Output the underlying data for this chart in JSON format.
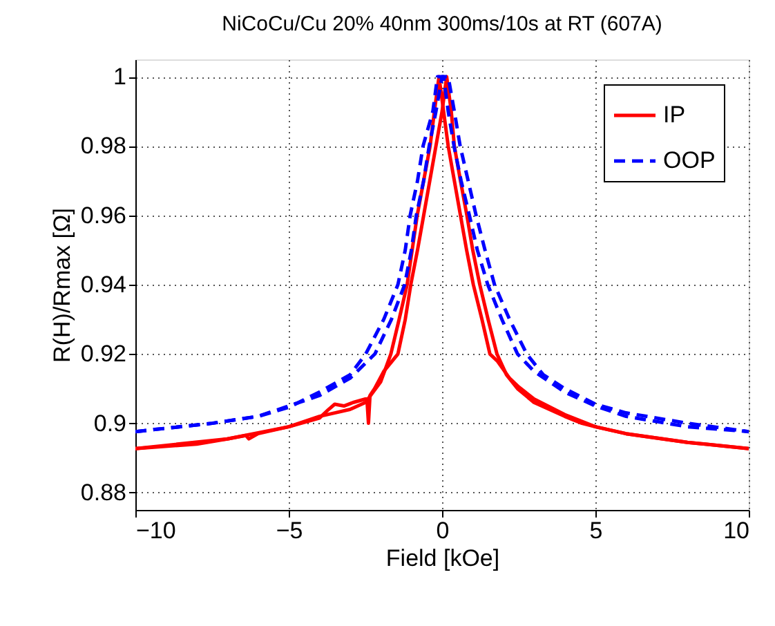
{
  "chart_data": {
    "type": "line",
    "title": "NiCoCu/Cu 20% 40nm 300ms/10s at RT (607A)",
    "xlabel": "Field [kOe]",
    "ylabel": "R(H)/Rmax [Ω]",
    "xlim": [
      -10,
      10
    ],
    "xticks": [
      -10,
      -5,
      0,
      5,
      10
    ],
    "ylim": [
      0.875,
      1.005
    ],
    "yticks": [
      0.88,
      0.9,
      0.92,
      0.94,
      0.96,
      0.98,
      1
    ],
    "grid": true,
    "legend": "top right",
    "marker": "none",
    "series": [
      {
        "name": "IP",
        "color": "#ff0000",
        "line_style": "solid",
        "x": [
          -10,
          -8,
          -7,
          -6.4,
          -6.3,
          -6,
          -5,
          -4,
          -3.5,
          -3,
          -2.5,
          -2,
          -1.67,
          -1.4,
          -1.14,
          -0.81,
          -0.6,
          -0.39,
          -0.25,
          -0.1,
          0.05,
          0.2,
          0.4,
          0.6,
          0.8,
          1.02,
          1.3,
          1.56,
          1.8,
          2.2,
          2.5,
          3,
          4,
          5,
          6,
          8,
          10
        ],
        "values": [
          0.8927,
          0.894,
          0.8955,
          0.8965,
          0.8955,
          0.897,
          0.899,
          0.902,
          0.903,
          0.904,
          0.906,
          0.912,
          0.92,
          0.93,
          0.94,
          0.96,
          0.97,
          0.98,
          0.99,
          1.0,
          0.99,
          0.98,
          0.97,
          0.96,
          0.95,
          0.94,
          0.93,
          0.92,
          0.918,
          0.913,
          0.9105,
          0.907,
          0.9025,
          0.899,
          0.897,
          0.8945,
          0.8927
        ]
      },
      {
        "color": "#ff0000",
        "line_style": "solid",
        "x": [
          -10,
          -7,
          -5,
          -4,
          -3.7,
          -3.5,
          -3.2,
          -2.9,
          -2.5,
          -2.45,
          -2.4,
          -2.35,
          -2.2,
          -1.9,
          -1.44,
          -1.2,
          -1.02,
          -0.8,
          -0.6,
          -0.4,
          -0.2,
          0,
          0.15,
          0.3,
          0.4,
          0.6,
          0.81,
          1.0,
          1.23,
          1.5,
          1.79,
          2.1,
          2.46,
          3,
          4,
          4.56,
          5,
          6,
          8,
          10
        ],
        "values": [
          0.8927,
          0.8955,
          0.899,
          0.9015,
          0.904,
          0.9055,
          0.905,
          0.906,
          0.907,
          0.907,
          0.9,
          0.908,
          0.91,
          0.915,
          0.92,
          0.93,
          0.94,
          0.95,
          0.96,
          0.97,
          0.98,
          0.99,
          1.0,
          0.99,
          0.98,
          0.97,
          0.96,
          0.95,
          0.94,
          0.93,
          0.92,
          0.914,
          0.91,
          0.906,
          0.902,
          0.9,
          0.899,
          0.897,
          0.8945,
          0.8927
        ]
      },
      {
        "name": "OOP",
        "color": "#0000ff",
        "line_style": "dashed",
        "x": [
          -10,
          -7.5,
          -6,
          -5,
          -4,
          -3,
          -2.49,
          -1.9,
          -1.44,
          -1.2,
          -1.04,
          -0.8,
          -0.62,
          -0.3,
          -0.15,
          0.05,
          0.2,
          0.39,
          0.62,
          0.89,
          1.15,
          1.49,
          1.95,
          2.46,
          3,
          4,
          5,
          6,
          8,
          10
        ],
        "values": [
          0.8976,
          0.9,
          0.902,
          0.9046,
          0.909,
          0.914,
          0.92,
          0.93,
          0.94,
          0.95,
          0.96,
          0.97,
          0.98,
          0.99,
          1.0,
          1.0,
          0.99,
          0.98,
          0.97,
          0.96,
          0.95,
          0.94,
          0.93,
          0.92,
          0.915,
          0.909,
          0.905,
          0.902,
          0.899,
          0.8976
        ]
      },
      {
        "color": "#0000ff",
        "line_style": "dashed",
        "x": [
          -10,
          -7.5,
          -6,
          -5,
          -4,
          -3,
          -2.19,
          -1.65,
          -1.22,
          -1.0,
          -0.84,
          -0.6,
          -0.42,
          -0.2,
          0,
          0.2,
          0.4,
          0.59,
          0.85,
          1.11,
          1.4,
          1.71,
          2.2,
          2.76,
          3.3,
          4,
          5,
          6,
          8,
          10
        ],
        "values": [
          0.8976,
          0.9,
          0.902,
          0.905,
          0.908,
          0.913,
          0.92,
          0.93,
          0.94,
          0.95,
          0.96,
          0.97,
          0.98,
          0.99,
          1.0,
          1.0,
          0.99,
          0.98,
          0.97,
          0.96,
          0.95,
          0.94,
          0.93,
          0.92,
          0.914,
          0.91,
          0.9055,
          0.903,
          0.9,
          0.8976
        ]
      }
    ]
  }
}
